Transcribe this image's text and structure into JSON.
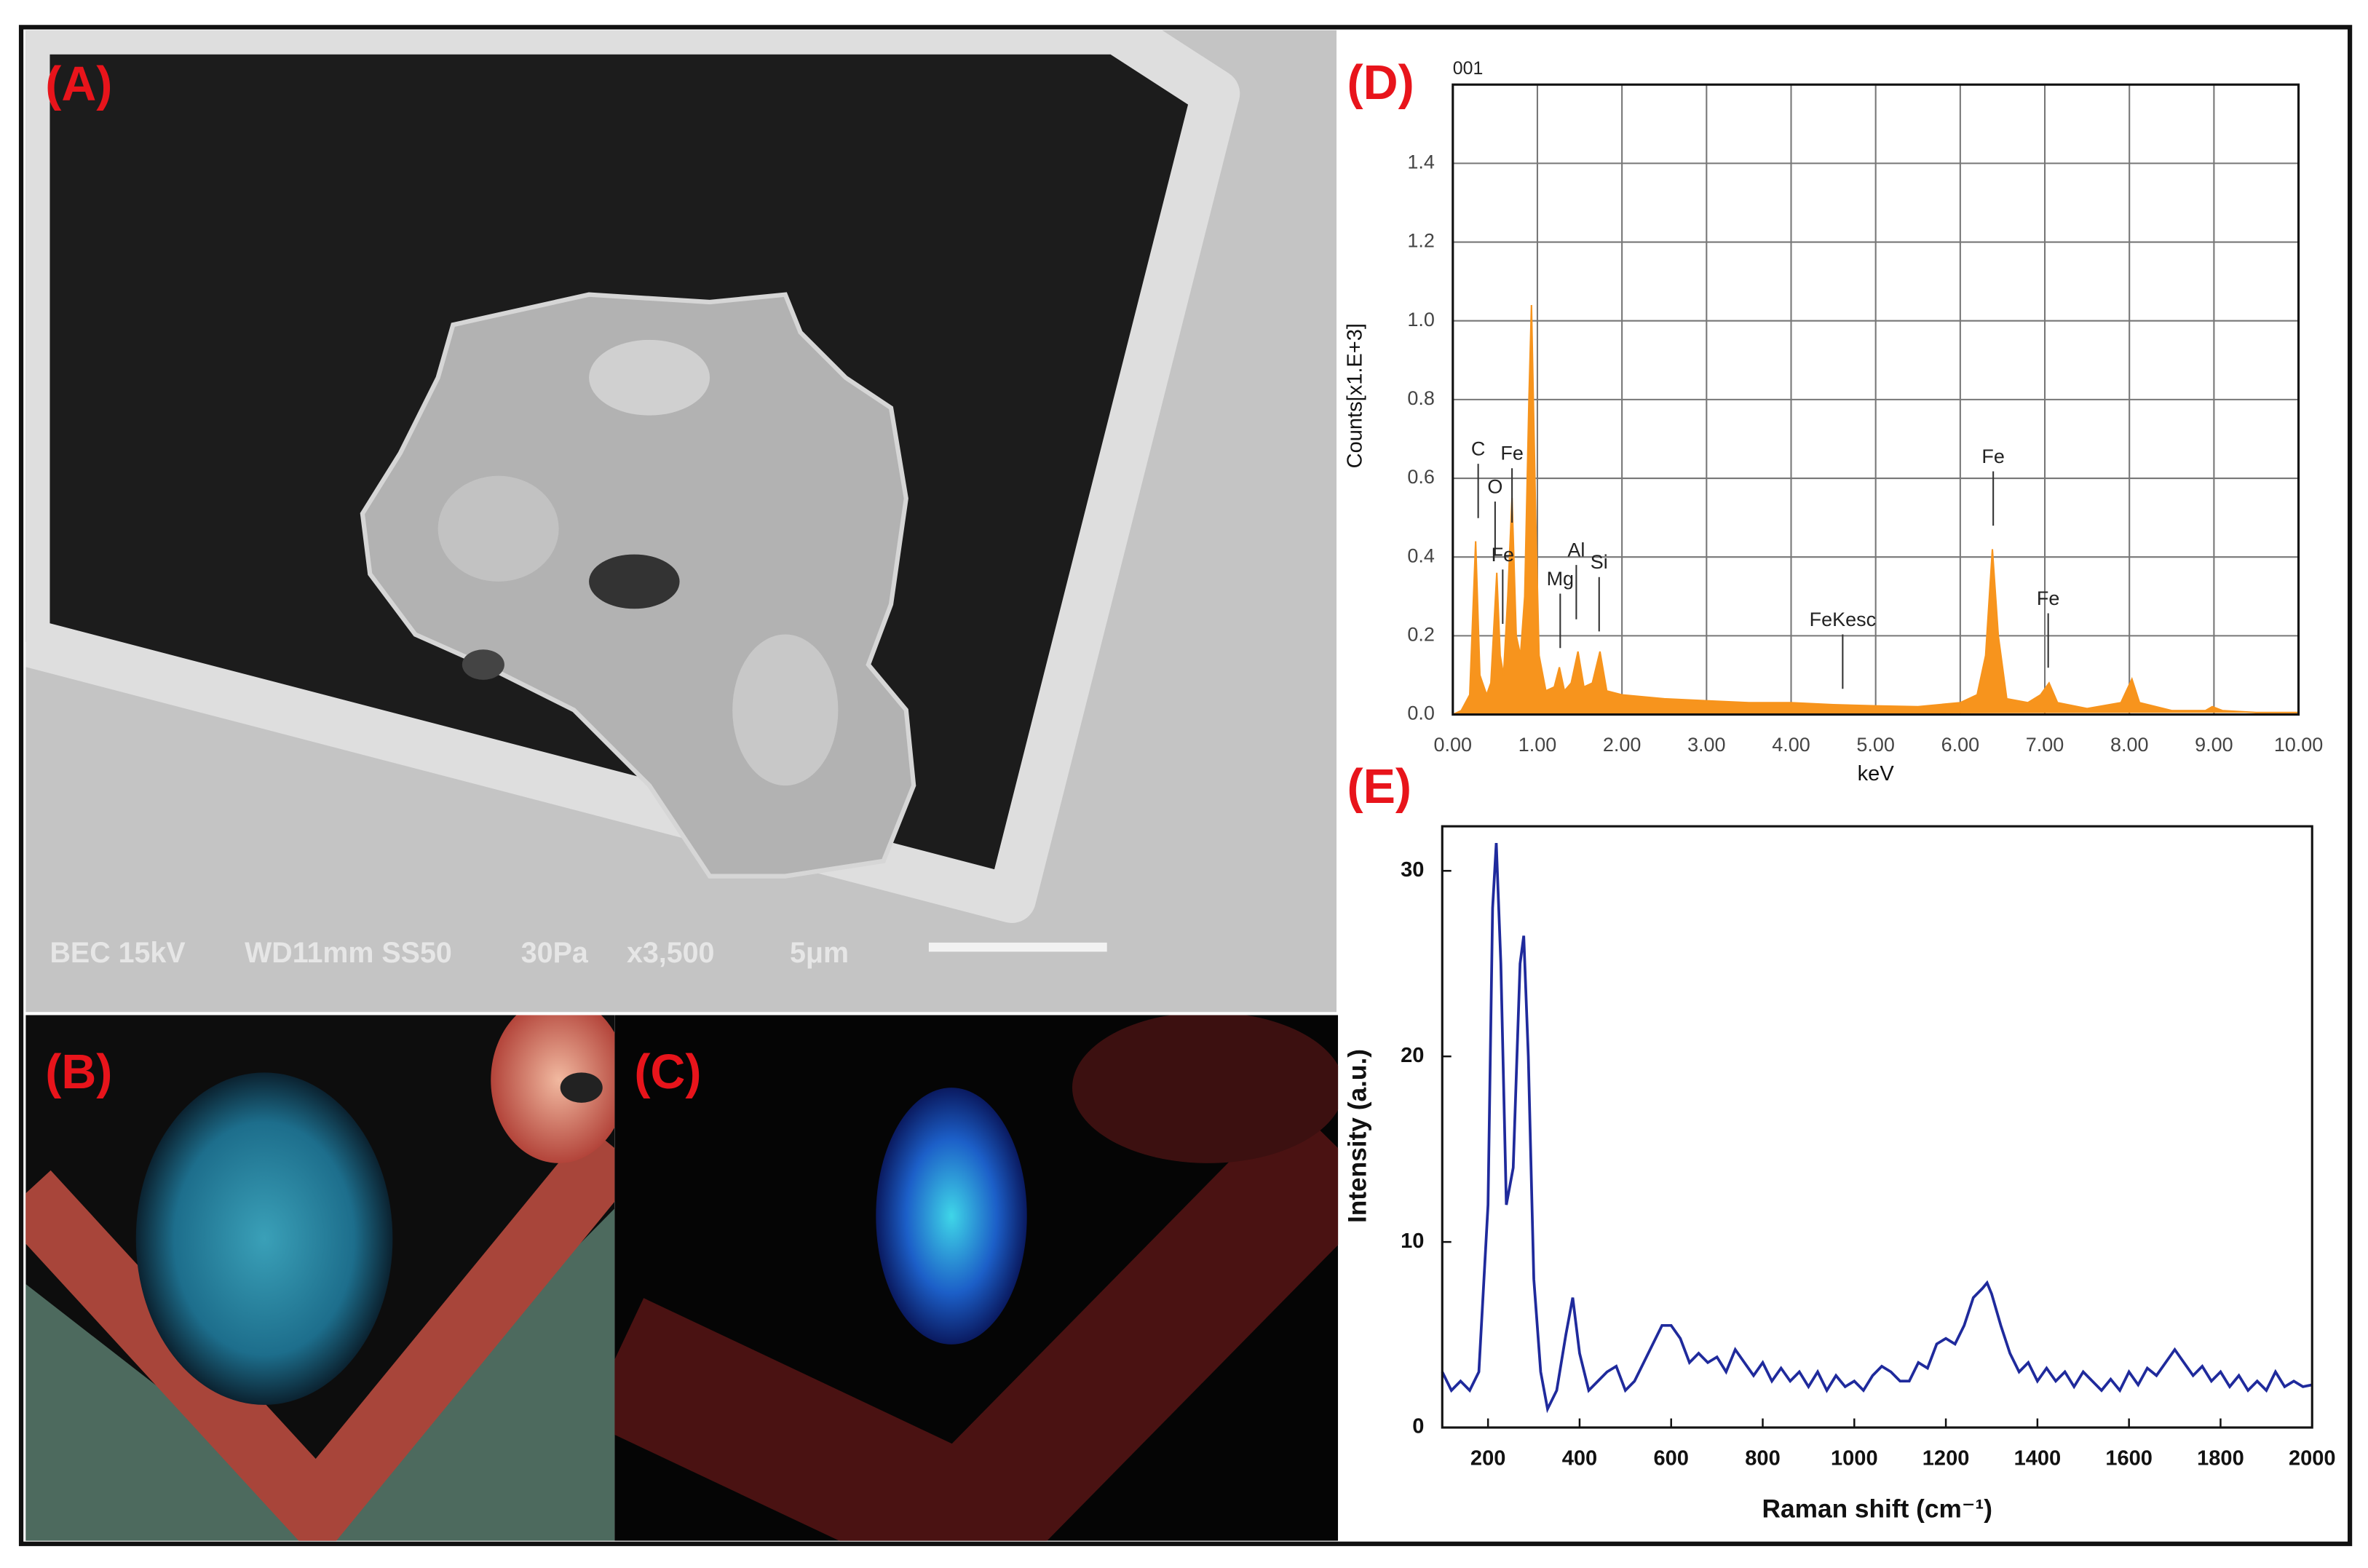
{
  "panel_labels": [
    "(A)",
    "(B)",
    "(C)",
    "(D)",
    "(E)"
  ],
  "sem_caption": [
    "BEC 15kV",
    "WD11mm SS50",
    "30Pa",
    "x3,500",
    "5μm"
  ],
  "chart_data": [
    {
      "type": "area",
      "title": "001",
      "x_label": "keV",
      "y_label": "Counts[x1.E+3]",
      "x": [
        0.0,
        0.1,
        0.2,
        0.27,
        0.32,
        0.4,
        0.45,
        0.52,
        0.56,
        0.6,
        0.65,
        0.7,
        0.75,
        0.8,
        0.85,
        0.9,
        0.93,
        0.98,
        1.02,
        1.1,
        1.2,
        1.26,
        1.32,
        1.4,
        1.48,
        1.55,
        1.65,
        1.74,
        1.82,
        2.0,
        2.5,
        3.0,
        3.5,
        4.0,
        4.5,
        5.0,
        5.5,
        6.0,
        6.2,
        6.3,
        6.38,
        6.45,
        6.55,
        6.8,
        6.95,
        7.05,
        7.15,
        7.5,
        7.9,
        8.03,
        8.12,
        8.5,
        8.9,
        8.98,
        9.1,
        9.5,
        10.0
      ],
      "series": [
        {
          "color": "#f7941d",
          "values": [
            0.0,
            0.01,
            0.05,
            0.44,
            0.1,
            0.05,
            0.08,
            0.36,
            0.15,
            0.1,
            0.3,
            0.55,
            0.2,
            0.15,
            0.3,
            0.8,
            1.04,
            0.5,
            0.15,
            0.06,
            0.07,
            0.12,
            0.06,
            0.08,
            0.16,
            0.07,
            0.08,
            0.16,
            0.06,
            0.05,
            0.04,
            0.035,
            0.03,
            0.03,
            0.025,
            0.022,
            0.02,
            0.03,
            0.05,
            0.15,
            0.42,
            0.2,
            0.04,
            0.03,
            0.05,
            0.08,
            0.03,
            0.015,
            0.03,
            0.09,
            0.03,
            0.01,
            0.01,
            0.02,
            0.01,
            0.005,
            0.005
          ]
        }
      ],
      "xlim": [
        0,
        10
      ],
      "ylim": [
        0,
        1.6
      ],
      "xticks": [
        {
          "value": 0,
          "label": "0.00"
        },
        {
          "value": 1,
          "label": "1.00"
        },
        {
          "value": 2,
          "label": "2.00"
        },
        {
          "value": 3,
          "label": "3.00"
        },
        {
          "value": 4,
          "label": "4.00"
        },
        {
          "value": 5,
          "label": "5.00"
        },
        {
          "value": 6,
          "label": "6.00"
        },
        {
          "value": 7,
          "label": "7.00"
        },
        {
          "value": 8,
          "label": "8.00"
        },
        {
          "value": 9,
          "label": "9.00"
        },
        {
          "value": 10,
          "label": "10.00"
        }
      ],
      "yticks": [
        {
          "value": 0,
          "label": "0.0"
        },
        {
          "value": 0.2,
          "label": "0.2"
        },
        {
          "value": 0.4,
          "label": "0.4"
        },
        {
          "value": 0.6,
          "label": "0.6"
        },
        {
          "value": 0.8,
          "label": "0.8"
        },
        {
          "value": 1,
          "label": "1.0"
        },
        {
          "value": 1.2,
          "label": "1.2"
        },
        {
          "value": 1.4,
          "label": "1.4"
        }
      ],
      "grid": true,
      "annotations": [
        {
          "text": "C",
          "x": 0.3
        },
        {
          "text": "O",
          "x": 0.5
        },
        {
          "text": "Fe",
          "x": 0.7
        },
        {
          "text": "Fe",
          "x": 0.59
        },
        {
          "text": "Mg",
          "x": 1.27
        },
        {
          "text": "Al",
          "x": 1.46
        },
        {
          "text": "Si",
          "x": 1.73
        },
        {
          "text": "FeKesc",
          "x": 4.61
        },
        {
          "text": "Fe",
          "x": 6.39
        },
        {
          "text": "Fe",
          "x": 7.04
        }
      ]
    },
    {
      "type": "line",
      "x_label": "Raman shift (cm⁻¹)",
      "y_label": "Intensity (a.u.)",
      "x": [
        100,
        120,
        140,
        160,
        180,
        200,
        210,
        218,
        228,
        240,
        255,
        270,
        278,
        288,
        300,
        315,
        330,
        350,
        370,
        385,
        400,
        420,
        440,
        460,
        480,
        500,
        520,
        540,
        560,
        580,
        600,
        620,
        640,
        660,
        680,
        700,
        720,
        740,
        760,
        780,
        800,
        820,
        840,
        860,
        880,
        900,
        920,
        940,
        960,
        980,
        1000,
        1020,
        1040,
        1060,
        1080,
        1100,
        1120,
        1140,
        1160,
        1180,
        1200,
        1220,
        1240,
        1260,
        1280,
        1290,
        1300,
        1320,
        1340,
        1360,
        1380,
        1400,
        1420,
        1440,
        1460,
        1480,
        1500,
        1520,
        1540,
        1560,
        1580,
        1600,
        1620,
        1640,
        1660,
        1680,
        1700,
        1720,
        1740,
        1760,
        1780,
        1800,
        1820,
        1840,
        1860,
        1880,
        1900,
        1920,
        1940,
        1960,
        1980,
        2000
      ],
      "series": [
        {
          "color": "#1f2a9c",
          "values": [
            3,
            2,
            2.5,
            2,
            3,
            12,
            28,
            31.5,
            25,
            12,
            14,
            25,
            26.5,
            20,
            8,
            3,
            1,
            2,
            5,
            7,
            4,
            2,
            2.5,
            3,
            3.3,
            2,
            2.5,
            3.5,
            4.5,
            5.5,
            5.5,
            4.8,
            3.5,
            4,
            3.5,
            3.8,
            3,
            4.2,
            3.5,
            2.8,
            3.5,
            2.5,
            3.2,
            2.5,
            3,
            2.2,
            3,
            2,
            2.8,
            2.2,
            2.5,
            2,
            2.8,
            3.3,
            3,
            2.5,
            2.5,
            3.5,
            3.2,
            4.5,
            4.8,
            4.5,
            5.5,
            7,
            7.5,
            7.8,
            7.2,
            5.5,
            4,
            3,
            3.5,
            2.5,
            3.2,
            2.5,
            3,
            2.2,
            3,
            2.5,
            2,
            2.6,
            2,
            3,
            2.3,
            3.2,
            2.8,
            3.5,
            4.2,
            3.5,
            2.8,
            3.3,
            2.5,
            3,
            2.2,
            2.8,
            2,
            2.5,
            2,
            3,
            2.2,
            2.5,
            2.2,
            2.3
          ]
        }
      ],
      "xlim": [
        100,
        2000
      ],
      "ylim": [
        0,
        32.4
      ],
      "xticks": [
        200,
        400,
        600,
        800,
        1000,
        1200,
        1400,
        1600,
        1800,
        2000
      ],
      "yticks": [
        0,
        10,
        20,
        30
      ],
      "grid": false
    }
  ]
}
